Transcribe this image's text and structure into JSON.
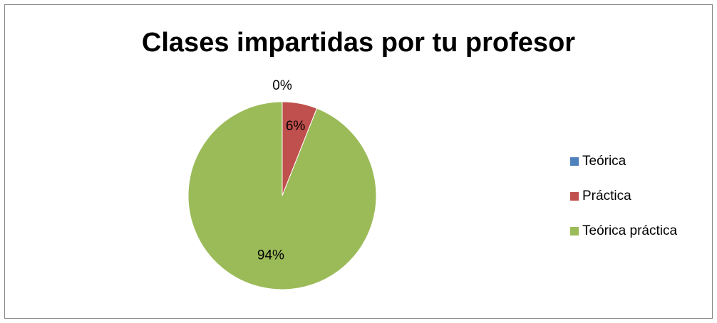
{
  "chart_data": {
    "type": "pie",
    "title": "Clases impartidas por tu profesor",
    "categories": [
      "Teórica",
      "Práctica",
      "Teórica práctica"
    ],
    "values": [
      0,
      6,
      94
    ],
    "value_labels": [
      "0%",
      "6%",
      "94%"
    ],
    "colors": [
      "#4f81bd",
      "#c0504d",
      "#9bbb59"
    ],
    "legend": "right"
  }
}
